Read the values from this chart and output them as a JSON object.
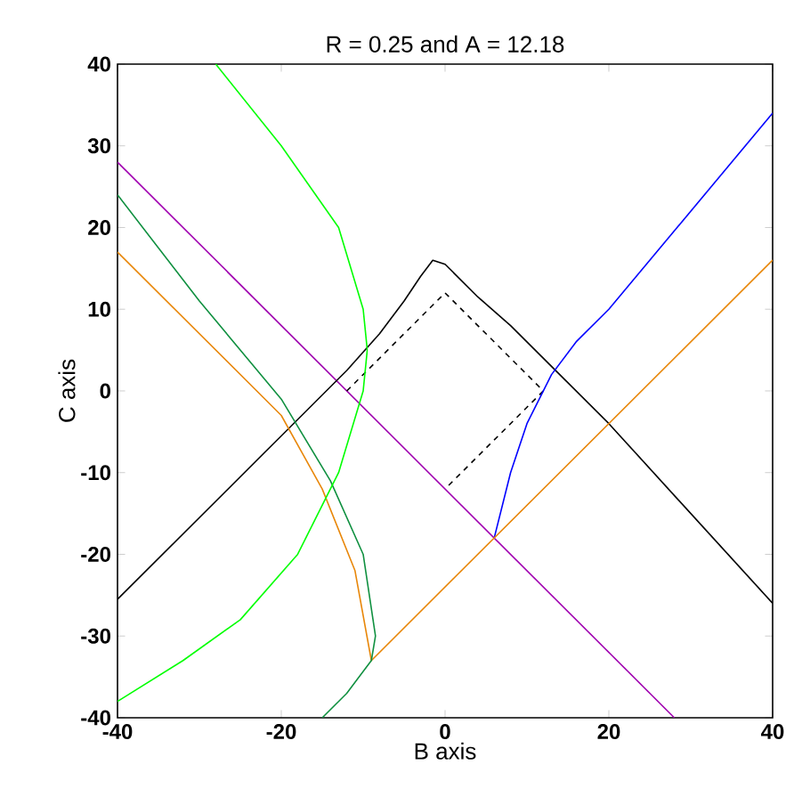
{
  "chart_data": {
    "type": "line",
    "title": "R = 0.25   and   A = 12.18",
    "xlabel": "B axis",
    "ylabel": "C axis",
    "xlim": [
      -40,
      40
    ],
    "ylim": [
      -40,
      40
    ],
    "xticks": [
      -40,
      -20,
      0,
      20,
      40
    ],
    "yticks": [
      -40,
      -30,
      -20,
      -10,
      0,
      10,
      20,
      30,
      40
    ],
    "series": [
      {
        "color": "#a000b0",
        "x": [
          -40,
          28
        ],
        "values": [
          28,
          -40
        ]
      },
      {
        "color": "#000000",
        "x": [
          -40,
          -30,
          -20,
          -12,
          -8,
          -5,
          -3,
          -1.5,
          0,
          2,
          4,
          8,
          12,
          20,
          30,
          40
        ],
        "values": [
          -25.5,
          -15.5,
          -5.5,
          2.5,
          7,
          11,
          14,
          16,
          15.5,
          13.5,
          11.5,
          8,
          4,
          -4,
          -15,
          -26
        ]
      },
      {
        "color": "#000000",
        "line_style": "dashed",
        "x": [
          -12,
          0,
          12,
          0
        ],
        "values": [
          0,
          12,
          0,
          -12
        ]
      },
      {
        "color": "#0000ff",
        "x": [
          6,
          8,
          10,
          13,
          16,
          20,
          25,
          30,
          35,
          40
        ],
        "values": [
          -18,
          -10,
          -4,
          2,
          6,
          10,
          16,
          22,
          28,
          34
        ]
      },
      {
        "color": "#e8870a",
        "x": [
          -40,
          -30,
          -20,
          -15,
          -11,
          -9,
          40
        ],
        "values": [
          17,
          7,
          -3,
          -12,
          -22,
          -33,
          16
        ]
      },
      {
        "color": "#109040",
        "x": [
          -40,
          -30,
          -20,
          -14,
          -10,
          -8.5,
          -9,
          -12,
          -15
        ],
        "values": [
          24,
          11,
          -1,
          -11,
          -20,
          -30,
          -33,
          -37,
          -40
        ]
      },
      {
        "color": "#00ff00",
        "x": [
          -28,
          -20,
          -13,
          -10,
          -9.5,
          -10,
          -13,
          -18,
          -25,
          -32,
          -40
        ],
        "values": [
          40,
          30,
          20,
          10,
          5,
          0,
          -10,
          -20,
          -28,
          -33,
          -38
        ]
      }
    ]
  }
}
